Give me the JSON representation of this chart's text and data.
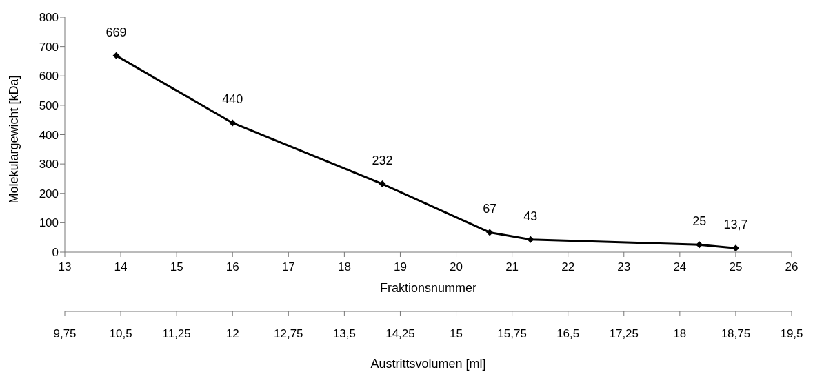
{
  "chart_data": {
    "type": "line",
    "xlabel": "Fraktionsnummer",
    "ylabel": "Molekulargewicht [kDa]",
    "x2label": "Austrittsvolumen [ml]",
    "x": [
      13.92,
      16,
      18.68,
      20.6,
      21.33,
      24.35,
      25
    ],
    "series": [
      {
        "color": "#000000",
        "values": [
          669,
          440,
          232,
          67,
          43,
          25,
          13.7
        ],
        "value_labels": [
          "669",
          "440",
          "232",
          "67",
          "43",
          "25",
          "13,7"
        ]
      }
    ],
    "xlim": [
      13,
      26
    ],
    "xticks": [
      13,
      14,
      15,
      16,
      17,
      18,
      19,
      20,
      21,
      22,
      23,
      24,
      25,
      26
    ],
    "x2lim": [
      9.75,
      19.5
    ],
    "x2ticks": [
      {
        "value": 9.75,
        "label": "9,75"
      },
      {
        "value": 10.5,
        "label": "10,5"
      },
      {
        "value": 11.25,
        "label": "11,25"
      },
      12,
      {
        "value": 12.75,
        "label": "12,75"
      },
      {
        "value": 13.5,
        "label": "13,5"
      },
      {
        "value": 14.25,
        "label": "14,25"
      },
      15,
      {
        "value": 15.75,
        "label": "15,75"
      },
      {
        "value": 16.5,
        "label": "16,5"
      },
      {
        "value": 17.25,
        "label": "17,25"
      },
      18,
      {
        "value": 18.75,
        "label": "18,75"
      },
      {
        "value": 19.5,
        "label": "19,5"
      }
    ],
    "ylim": [
      0,
      800
    ],
    "yticks": [
      0,
      100,
      200,
      300,
      400,
      500,
      600,
      700,
      800
    ],
    "grid": false,
    "legend": false,
    "marker": "diamond",
    "line_style": "solid"
  }
}
